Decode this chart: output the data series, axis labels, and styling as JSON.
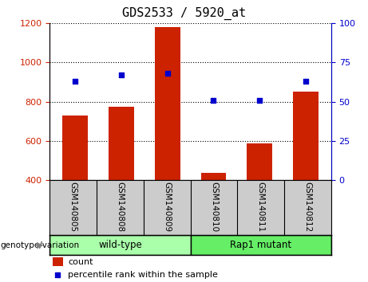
{
  "title": "GDS2533 / 5920_at",
  "samples": [
    "GSM140805",
    "GSM140808",
    "GSM140809",
    "GSM140810",
    "GSM140811",
    "GSM140812"
  ],
  "counts": [
    730,
    775,
    1180,
    437,
    585,
    850
  ],
  "percentile_ranks": [
    63,
    67,
    68,
    51,
    51,
    63
  ],
  "ylim_left": [
    400,
    1200
  ],
  "ylim_right": [
    0,
    100
  ],
  "yticks_left": [
    400,
    600,
    800,
    1000,
    1200
  ],
  "yticks_right": [
    0,
    25,
    50,
    75,
    100
  ],
  "bar_color": "#cc2200",
  "dot_color": "#0000cc",
  "groups": [
    {
      "label": "wild-type",
      "indices": [
        0,
        1,
        2
      ],
      "color": "#aaffaa"
    },
    {
      "label": "Rap1 mutant",
      "indices": [
        3,
        4,
        5
      ],
      "color": "#66ee66"
    }
  ],
  "group_label": "genotype/variation",
  "legend_count_label": "count",
  "legend_percentile_label": "percentile rank within the sample",
  "tick_label_color_left": "#cc2200",
  "tick_label_color_right": "#0000cc",
  "plot_bg_color": "#ffffff",
  "header_bg": "#cccccc",
  "title_fontsize": 11,
  "tick_fontsize": 8,
  "label_fontsize": 7.5,
  "legend_fontsize": 8
}
